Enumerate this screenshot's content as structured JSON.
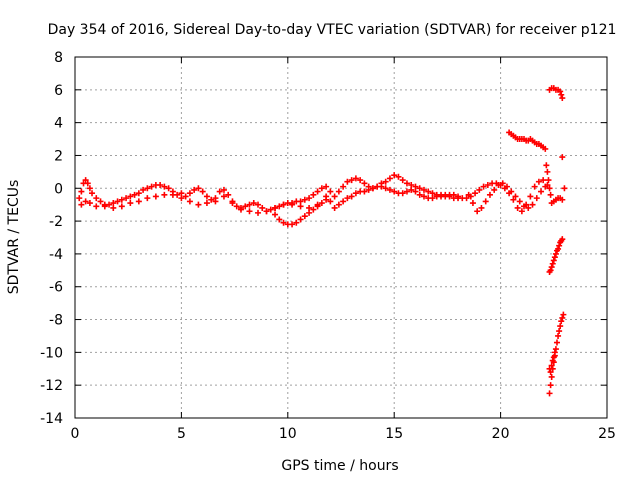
{
  "chart_data": {
    "type": "scatter",
    "title": "Day 354 of 2016, Sidereal Day-to-day VTEC variation (SDTVAR) for receiver p121",
    "xlabel": "GPS time / hours",
    "ylabel": "SDTVAR / TECUs",
    "xlim": [
      0,
      25
    ],
    "ylim": [
      -14,
      8
    ],
    "xticks": [
      0,
      5,
      10,
      15,
      20,
      25
    ],
    "yticks": [
      -14,
      -12,
      -10,
      -8,
      -6,
      -4,
      -2,
      0,
      2,
      4,
      6,
      8
    ],
    "grid": true,
    "marker": "plus",
    "color": "#ff0000",
    "series": [
      {
        "x": [
          0.2,
          0.3,
          0.4,
          0.5,
          0.6,
          0.7,
          0.8,
          1.0,
          1.2,
          1.4,
          1.6,
          1.8,
          2.0,
          2.2,
          2.4,
          2.6,
          2.8,
          3.0,
          3.2,
          3.4,
          3.6,
          3.8,
          4.0,
          4.2,
          4.4,
          4.6,
          4.8,
          5.0,
          5.2,
          5.4,
          5.6,
          5.8,
          6.0,
          6.2,
          6.4,
          6.6,
          6.8,
          7.0,
          7.2,
          7.4,
          7.6,
          7.8,
          8.0,
          8.2,
          8.4,
          8.6,
          8.8,
          9.0,
          9.2,
          9.4,
          9.6,
          9.8,
          10.0,
          10.2,
          10.4,
          10.6,
          10.8,
          11.0,
          11.2,
          11.4,
          11.6,
          11.8,
          12.0,
          12.2,
          12.4,
          12.6,
          12.8,
          13.0,
          13.2,
          13.4,
          13.6,
          13.8,
          14.0,
          14.2,
          14.4,
          14.6,
          14.8,
          15.0,
          15.2,
          15.4,
          15.6,
          15.8,
          16.0,
          16.2,
          16.4,
          16.6,
          16.8,
          17.0,
          17.2,
          17.4,
          17.6,
          17.8,
          18.0,
          18.2,
          18.4,
          18.6,
          18.8,
          19.0,
          19.2,
          19.4,
          19.6,
          19.8,
          20.0,
          20.2,
          20.4,
          20.6,
          20.8,
          21.0,
          21.2,
          21.4,
          21.6,
          21.8,
          22.0,
          22.2
        ],
        "y": [
          -0.6,
          -0.2,
          0.3,
          0.5,
          0.3,
          0.0,
          -0.3,
          -0.6,
          -0.8,
          -1.0,
          -1.0,
          -0.9,
          -0.8,
          -0.7,
          -0.6,
          -0.5,
          -0.4,
          -0.3,
          -0.1,
          0.0,
          0.1,
          0.2,
          0.2,
          0.1,
          0.0,
          -0.2,
          -0.4,
          -0.6,
          -0.5,
          -0.3,
          -0.1,
          0.0,
          -0.2,
          -0.5,
          -0.7,
          -0.6,
          -0.2,
          -0.1,
          -0.4,
          -0.9,
          -1.1,
          -1.2,
          -1.1,
          -1.0,
          -0.9,
          -1.0,
          -1.2,
          -1.4,
          -1.3,
          -1.2,
          -1.1,
          -1.0,
          -0.9,
          -0.9,
          -0.8,
          -0.8,
          -0.7,
          -0.6,
          -0.4,
          -0.2,
          0.0,
          0.1,
          -0.8,
          -0.5,
          -0.2,
          0.1,
          0.4,
          0.5,
          0.6,
          0.5,
          0.3,
          0.1,
          0.0,
          0.1,
          0.3,
          0.4,
          0.6,
          0.8,
          0.7,
          0.5,
          0.3,
          0.2,
          0.1,
          0.0,
          -0.1,
          -0.2,
          -0.3,
          -0.4,
          -0.5,
          -0.5,
          -0.4,
          -0.4,
          -0.5,
          -0.6,
          -0.6,
          -0.5,
          -0.3,
          -0.1,
          0.1,
          0.2,
          0.3,
          0.3,
          0.2,
          0.0,
          -0.3,
          -0.7,
          -1.2,
          -1.4,
          -1.0,
          -0.5,
          0.1,
          0.4,
          0.5,
          0.2
        ]
      },
      {
        "x": [
          0.3,
          0.5,
          0.7,
          1.0,
          1.4,
          1.8,
          2.2,
          2.6,
          3.0,
          3.4,
          3.8,
          4.2,
          4.6,
          5.0,
          5.4,
          5.8,
          6.2,
          6.6,
          7.0,
          7.4,
          7.8,
          8.2,
          8.6,
          9.0,
          9.4,
          9.8,
          10.2,
          10.6,
          11.0,
          11.4,
          11.8,
          12.0
        ],
        "y": [
          -1.0,
          -0.8,
          -0.9,
          -1.1,
          -1.1,
          -1.2,
          -1.1,
          -0.9,
          -0.8,
          -0.6,
          -0.5,
          -0.4,
          -0.4,
          -0.3,
          -0.8,
          -1.0,
          -0.9,
          -0.8,
          -0.5,
          -0.8,
          -1.3,
          -1.4,
          -1.5,
          -1.4,
          -1.2,
          -1.0,
          -1.0,
          -1.1,
          -1.2,
          -1.0,
          -0.5,
          -0.2
        ]
      },
      {
        "x": [
          9.4,
          9.6,
          9.8,
          10.0,
          10.2,
          10.4,
          10.6,
          10.8,
          11.0,
          11.2,
          11.4,
          11.6,
          11.8
        ],
        "y": [
          -1.6,
          -1.9,
          -2.1,
          -2.2,
          -2.2,
          -2.1,
          -1.9,
          -1.7,
          -1.5,
          -1.3,
          -1.1,
          -0.9,
          -0.7
        ]
      },
      {
        "x": [
          12.2,
          12.4,
          12.6,
          12.8,
          13.0,
          13.2,
          13.4,
          13.6,
          13.8,
          14.0,
          14.2,
          14.4,
          14.6,
          14.8,
          15.0,
          15.2,
          15.4,
          15.6,
          15.8,
          16.0,
          16.2,
          16.4,
          16.6,
          16.8,
          17.0,
          17.2,
          17.4,
          17.6,
          17.8,
          18.0
        ],
        "y": [
          -1.2,
          -1.0,
          -0.8,
          -0.6,
          -0.5,
          -0.3,
          -0.2,
          -0.2,
          -0.1,
          0.0,
          0.1,
          0.1,
          0.0,
          -0.1,
          -0.2,
          -0.3,
          -0.3,
          -0.2,
          -0.1,
          -0.2,
          -0.4,
          -0.5,
          -0.6,
          -0.6,
          -0.5,
          -0.4,
          -0.4,
          -0.5,
          -0.6,
          -0.6
        ]
      },
      {
        "x": [
          18.5,
          18.7,
          18.9,
          19.1,
          19.3,
          19.5,
          19.7,
          19.9,
          20.1,
          20.3,
          20.5,
          20.7,
          20.9,
          21.1,
          21.3,
          21.5,
          21.7,
          21.9,
          22.1
        ],
        "y": [
          -0.4,
          -0.9,
          -1.4,
          -1.2,
          -0.8,
          -0.4,
          -0.1,
          0.2,
          0.3,
          0.1,
          -0.2,
          -0.5,
          -0.8,
          -1.1,
          -1.2,
          -1.0,
          -0.6,
          -0.2,
          0.1
        ]
      },
      {
        "x": [
          20.4,
          20.5,
          20.6,
          20.7,
          20.8,
          20.9,
          21.0,
          21.1,
          21.2,
          21.3,
          21.4,
          21.5,
          21.6,
          21.7,
          21.8,
          21.9,
          22.0,
          22.1
        ],
        "y": [
          3.4,
          3.3,
          3.2,
          3.1,
          3.0,
          3.0,
          3.0,
          3.0,
          2.9,
          2.9,
          3.0,
          2.9,
          2.8,
          2.7,
          2.7,
          2.6,
          2.5,
          2.4
        ]
      },
      {
        "x": [
          22.15,
          22.2,
          22.25,
          22.3,
          22.35,
          22.4,
          22.5,
          22.6,
          22.7,
          22.8,
          22.9
        ],
        "y": [
          1.4,
          1.0,
          0.5,
          0.0,
          -0.4,
          -0.9,
          -0.8,
          -0.7,
          -0.6,
          -0.6,
          -0.7
        ]
      },
      {
        "x": [
          22.9,
          23.0
        ],
        "y": [
          1.9,
          0.0
        ]
      },
      {
        "x": [
          22.3,
          22.4,
          22.5,
          22.6,
          22.7,
          22.8,
          22.85,
          22.9
        ],
        "y": [
          6.0,
          6.1,
          6.1,
          6.0,
          6.0,
          5.9,
          5.7,
          5.5
        ]
      },
      {
        "x": [
          22.3,
          22.35,
          22.4,
          22.45,
          22.5,
          22.55,
          22.6,
          22.65,
          22.7,
          22.75,
          22.8,
          22.85,
          22.9
        ],
        "y": [
          -5.1,
          -5.0,
          -4.8,
          -4.6,
          -4.4,
          -4.2,
          -4.0,
          -3.8,
          -3.7,
          -3.5,
          -3.3,
          -3.2,
          -3.1
        ]
      },
      {
        "x": [
          22.3,
          22.35,
          22.4,
          22.45,
          22.5,
          22.55,
          22.6,
          22.65,
          22.7,
          22.75,
          22.8,
          22.85,
          22.9,
          22.95
        ],
        "y": [
          -12.5,
          -12.0,
          -11.5,
          -11.0,
          -10.6,
          -10.2,
          -9.8,
          -9.4,
          -9.0,
          -8.7,
          -8.4,
          -8.1,
          -7.9,
          -7.7
        ]
      },
      {
        "x": [
          22.3,
          22.35,
          22.4,
          22.45,
          22.5,
          22.55
        ],
        "y": [
          -11.0,
          -11.2,
          -10.8,
          -10.5,
          -10.3,
          -10.0
        ]
      }
    ]
  }
}
